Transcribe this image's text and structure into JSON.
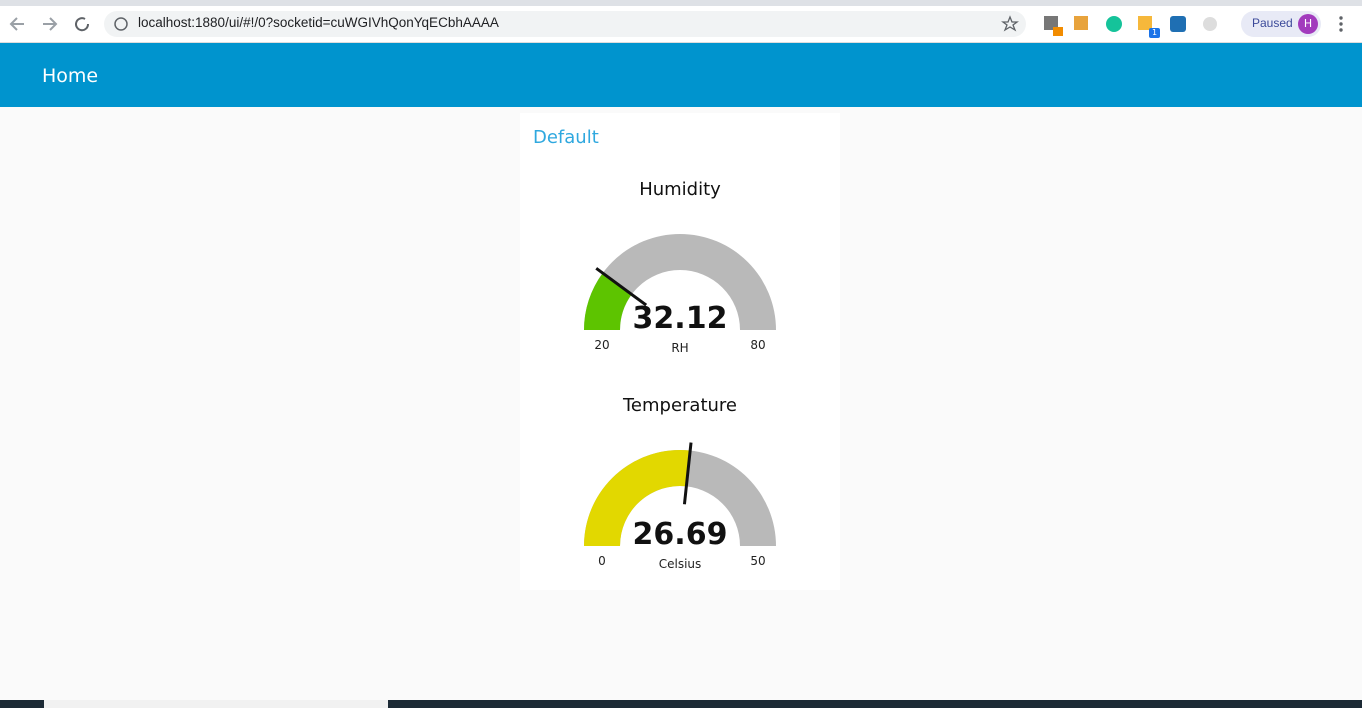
{
  "browser": {
    "url": "localhost:1880/ui/#!/0?socketid=cuWGIVhQonYqECbhAAAA",
    "profile_status": "Paused",
    "avatar": "H",
    "extension_badge": "1"
  },
  "header": {
    "title": "Home"
  },
  "group": {
    "title": "Default"
  },
  "gauges": [
    {
      "title": "Humidity",
      "value": 32.12,
      "units": "RH",
      "min": 20,
      "max": 80,
      "color": "#5dc400",
      "track_color": "#b9b9b9"
    },
    {
      "title": "Temperature",
      "value": 26.69,
      "units": "Celsius",
      "min": 0,
      "max": 50,
      "color": "#e2d800",
      "track_color": "#b9b9b9"
    }
  ]
}
